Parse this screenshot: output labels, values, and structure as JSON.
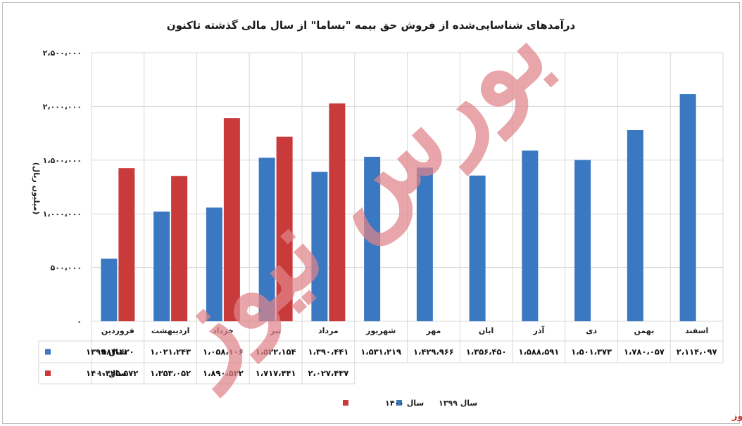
{
  "chart_data": {
    "type": "bar",
    "title": "درآمدهای شناسایی‌شده از فروش حق بیمه \"بساما\" از سال مالی گذشته تاکنون",
    "ylabel": "(میلیون ریال)",
    "ylim": [
      0,
      2500000
    ],
    "yticks": [
      0,
      500000,
      1000000,
      1500000,
      2000000,
      2500000
    ],
    "ytick_labels": [
      "۰",
      "۵۰۰،۰۰۰",
      "۱،۰۰۰،۰۰۰",
      "۱،۵۰۰،۰۰۰",
      "۲،۰۰۰،۰۰۰",
      "۲،۵۰۰،۰۰۰"
    ],
    "grid": true,
    "legend_position": "bottom",
    "categories": [
      "فروردین",
      "اردیبهشت",
      "خرداد",
      "تیر",
      "مرداد",
      "شهریور",
      "مهر",
      "ابان",
      "آذر",
      "دی",
      "بهمن",
      "اسفند"
    ],
    "series": [
      {
        "name": "سال ۱۳۹۹",
        "color": "#3a78c2",
        "values": [
          583420,
          1021243,
          1058106,
          1522154,
          1390441,
          1531219,
          1429966,
          1356450,
          1588591,
          1501373,
          1780057,
          2114097
        ],
        "labels": [
          "۵۸۳،۴۲۰",
          "۱،۰۲۱،۲۴۳",
          "۱،۰۵۸،۱۰۶",
          "۱،۵۲۲،۱۵۴",
          "۱،۳۹۰،۴۴۱",
          "۱،۵۳۱،۲۱۹",
          "۱،۴۲۹،۹۶۶",
          "۱،۳۵۶،۴۵۰",
          "۱،۵۸۸،۵۹۱",
          "۱،۵۰۱،۳۷۳",
          "۱،۷۸۰،۰۵۷",
          "۲،۱۱۴،۰۹۷"
        ]
      },
      {
        "name": "سال ۱۴۰۰",
        "color": "#c93a3a",
        "values": [
          1425572,
          1353052,
          1890522,
          1717441,
          2027437,
          null,
          null,
          null,
          null,
          null,
          null,
          null
        ],
        "labels": [
          "۱،۴۲۵،۵۷۲",
          "۱،۳۵۳،۰۵۲",
          "۱،۸۹۰،۵۲۲",
          "۱،۷۱۷،۴۴۱",
          "۲،۰۲۷،۴۳۷",
          "",
          "",
          "",
          "",
          "",
          "",
          ""
        ]
      }
    ]
  },
  "watermark": {
    "text": "بورس نیوز",
    "color": "#e0848a"
  },
  "brand": {
    "text": "بورس نیوز",
    "color": "#c0392b"
  }
}
